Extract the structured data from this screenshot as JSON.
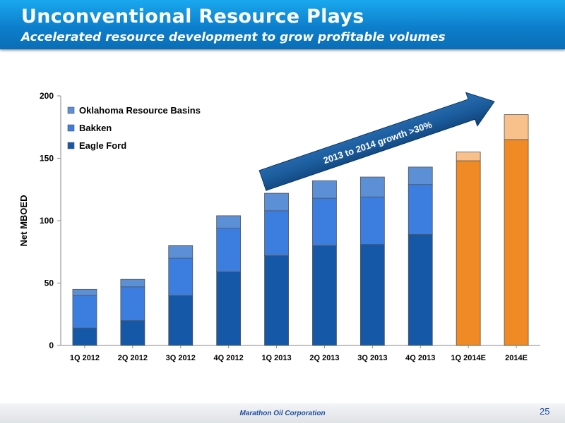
{
  "header": {
    "title": "Unconventional Resource Plays",
    "subtitle": "Accelerated resource development to grow profitable volumes"
  },
  "chart_data": {
    "type": "bar",
    "stacked": true,
    "categories": [
      "1Q 2012",
      "2Q 2012",
      "3Q 2012",
      "4Q 2012",
      "1Q 2013",
      "2Q 2013",
      "3Q 2013",
      "4Q 2013",
      "1Q 2014E",
      "2014E"
    ],
    "series": [
      {
        "name": "Eagle Ford",
        "values": [
          14,
          20,
          40,
          59,
          72,
          80,
          81,
          89,
          148,
          165
        ],
        "color": "#1558a8"
      },
      {
        "name": "Bakken",
        "values": [
          26,
          27,
          30,
          35,
          36,
          38,
          38,
          40,
          0,
          0
        ],
        "color": "#3b7ee0"
      },
      {
        "name": "Oklahoma Resource Basins",
        "values": [
          5,
          6,
          10,
          10,
          14,
          14,
          16,
          14,
          7,
          20
        ],
        "color": "#5b8fd6"
      }
    ],
    "estimate_colors": {
      "base": "#ef8a24",
      "top": "#f8c08a"
    },
    "ylabel": "Net MBOED",
    "xlabel": "",
    "ylim": [
      0,
      200
    ],
    "yticks": [
      0,
      50,
      100,
      150,
      200
    ],
    "grid": false,
    "legend_position": "top-left",
    "annotation": "2013 to 2014 growth >30%"
  },
  "footer": {
    "company": "Marathon Oil Corporation",
    "page": "25"
  }
}
